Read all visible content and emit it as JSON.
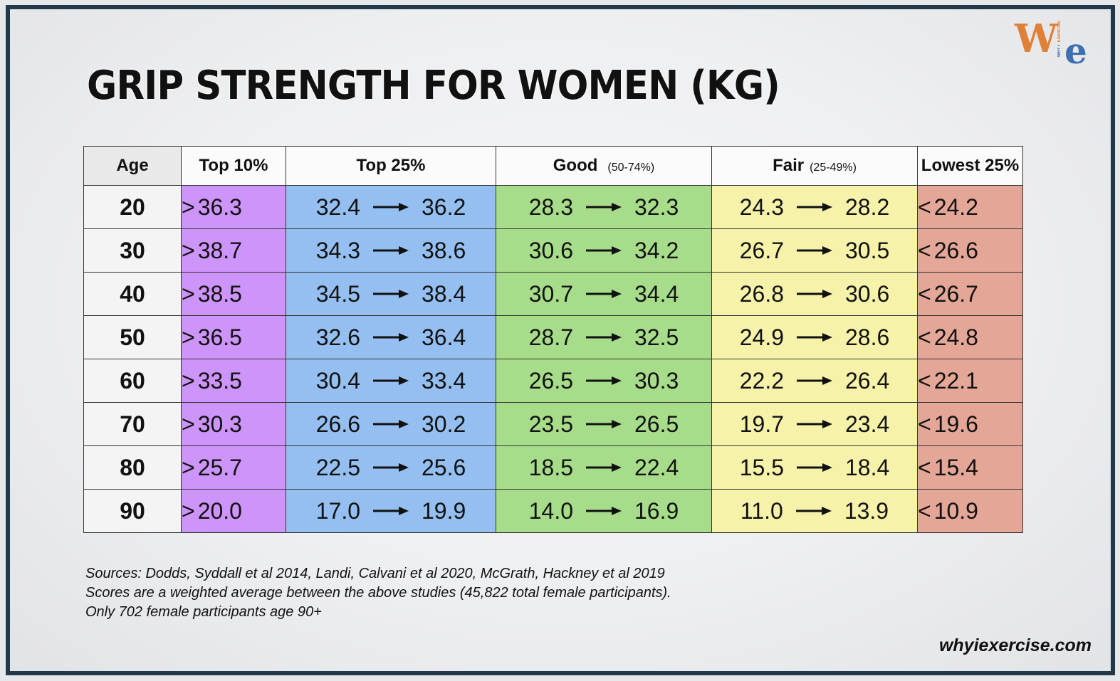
{
  "title": "GRIP STRENGTH FOR WOMEN (KG)",
  "logo": {
    "main_w": "W",
    "main_e": "e",
    "tag_top": "EXERCISE",
    "tag_bottom": "WHY I"
  },
  "table": {
    "headers": {
      "age": "Age",
      "top10": "Top 10%",
      "top25": "Top 25%",
      "good": "Good",
      "good_sub": "(50-74%)",
      "fair": "Fair",
      "fair_sub": "(25-49%)",
      "low": "Lowest 25%"
    },
    "rows": [
      {
        "age": "20",
        "top10": "36.3",
        "top25_lo": "32.4",
        "top25_hi": "36.2",
        "good_lo": "28.3",
        "good_hi": "32.3",
        "fair_lo": "24.3",
        "fair_hi": "28.2",
        "low": "24.2"
      },
      {
        "age": "30",
        "top10": "38.7",
        "top25_lo": "34.3",
        "top25_hi": "38.6",
        "good_lo": "30.6",
        "good_hi": "34.2",
        "fair_lo": "26.7",
        "fair_hi": "30.5",
        "low": "26.6"
      },
      {
        "age": "40",
        "top10": "38.5",
        "top25_lo": "34.5",
        "top25_hi": "38.4",
        "good_lo": "30.7",
        "good_hi": "34.4",
        "fair_lo": "26.8",
        "fair_hi": "30.6",
        "low": "26.7"
      },
      {
        "age": "50",
        "top10": "36.5",
        "top25_lo": "32.6",
        "top25_hi": "36.4",
        "good_lo": "28.7",
        "good_hi": "32.5",
        "fair_lo": "24.9",
        "fair_hi": "28.6",
        "low": "24.8"
      },
      {
        "age": "60",
        "top10": "33.5",
        "top25_lo": "30.4",
        "top25_hi": "33.4",
        "good_lo": "26.5",
        "good_hi": "30.3",
        "fair_lo": "22.2",
        "fair_hi": "26.4",
        "low": "22.1"
      },
      {
        "age": "70",
        "top10": "30.3",
        "top25_lo": "26.6",
        "top25_hi": "30.2",
        "good_lo": "23.5",
        "good_hi": "26.5",
        "fair_lo": "19.7",
        "fair_hi": "23.4",
        "low": "19.6"
      },
      {
        "age": "80",
        "top10": "25.7",
        "top25_lo": "22.5",
        "top25_hi": "25.6",
        "good_lo": "18.5",
        "good_hi": "22.4",
        "fair_lo": "15.5",
        "fair_hi": "18.4",
        "low": "15.4"
      },
      {
        "age": "90",
        "top10": "20.0",
        "top25_lo": "17.0",
        "top25_hi": "19.9",
        "good_lo": "14.0",
        "good_hi": "16.9",
        "fair_lo": "11.0",
        "fair_hi": "13.9",
        "low": "10.9"
      }
    ],
    "gt_symbol": ">",
    "lt_symbol": "<",
    "colors": {
      "top10": "#cd94fa",
      "top25": "#94bff0",
      "good": "#a7dd8a",
      "fair": "#f6f2aa",
      "low": "#e4a697"
    }
  },
  "notes": [
    "Sources:  Dodds, Syddall et al 2014, Landi, Calvani et al 2020, McGrath, Hackney et al 2019",
    "Scores are a weighted average between the above studies (45,822 total female participants).",
    "Only 702 female participants age 90+"
  ],
  "site": "whyiexercise.com"
}
